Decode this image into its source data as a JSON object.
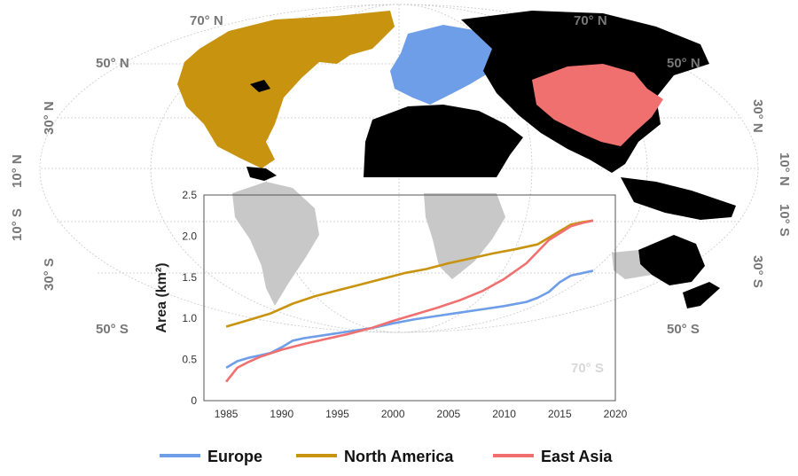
{
  "map": {
    "lat_labels_top": [
      "70° N",
      "70° N"
    ],
    "lat_labels_left": [
      "50° N",
      "30° N",
      "10° N",
      "10° S",
      "30° S",
      "50° S"
    ],
    "lat_labels_right": [
      "50° N",
      "30° N",
      "10° N",
      "10° S",
      "30° S",
      "50° S"
    ],
    "lat_label_inset": "70° S",
    "region_colors": {
      "north_america": "#c8930f",
      "europe": "#6f9ee8",
      "east_asia": "#f07070",
      "other_land_top": "#000000",
      "other_land_behind_chart": "#c8c8c8"
    }
  },
  "chart_data": {
    "type": "line",
    "ylabel": "Area (km²)",
    "xlim": [
      1983,
      2020
    ],
    "ylim": [
      0,
      2.5
    ],
    "xticks": [
      "1985",
      "1990",
      "1995",
      "2000",
      "2005",
      "2010",
      "2015",
      "2020"
    ],
    "yticks": [
      "0",
      "0.5",
      "1.0",
      "1.5",
      "2.0",
      "2.5"
    ],
    "series": [
      {
        "name": "Europe",
        "color": "#6f9ee8",
        "x": [
          1985,
          1986,
          1987,
          1988,
          1989,
          1990,
          1991,
          1992,
          1994,
          1996,
          1998,
          2000,
          2002,
          2004,
          2006,
          2008,
          2010,
          2012,
          2013,
          2014,
          2015,
          2016,
          2017,
          2018
        ],
        "y": [
          0.4,
          0.48,
          0.52,
          0.55,
          0.58,
          0.65,
          0.73,
          0.76,
          0.8,
          0.84,
          0.88,
          0.94,
          0.99,
          1.03,
          1.07,
          1.11,
          1.15,
          1.2,
          1.25,
          1.32,
          1.44,
          1.52,
          1.55,
          1.58
        ]
      },
      {
        "name": "North America",
        "color": "#c8930f",
        "x": [
          1985,
          1987,
          1989,
          1991,
          1993,
          1995,
          1997,
          1999,
          2001,
          2003,
          2005,
          2007,
          2009,
          2011,
          2013,
          2015,
          2016,
          2017,
          2018
        ],
        "y": [
          0.9,
          0.98,
          1.06,
          1.18,
          1.27,
          1.34,
          1.41,
          1.48,
          1.55,
          1.6,
          1.67,
          1.73,
          1.79,
          1.84,
          1.9,
          2.06,
          2.14,
          2.17,
          2.19
        ]
      },
      {
        "name": "East Asia",
        "color": "#f07070",
        "x": [
          1985,
          1986,
          1987,
          1988,
          1990,
          1992,
          1994,
          1996,
          1998,
          2000,
          2002,
          2004,
          2006,
          2008,
          2010,
          2012,
          2014,
          2016,
          2017,
          2018
        ],
        "y": [
          0.23,
          0.4,
          0.47,
          0.53,
          0.62,
          0.69,
          0.75,
          0.81,
          0.88,
          0.97,
          1.05,
          1.13,
          1.22,
          1.33,
          1.48,
          1.67,
          1.95,
          2.12,
          2.16,
          2.19
        ]
      }
    ]
  }
}
